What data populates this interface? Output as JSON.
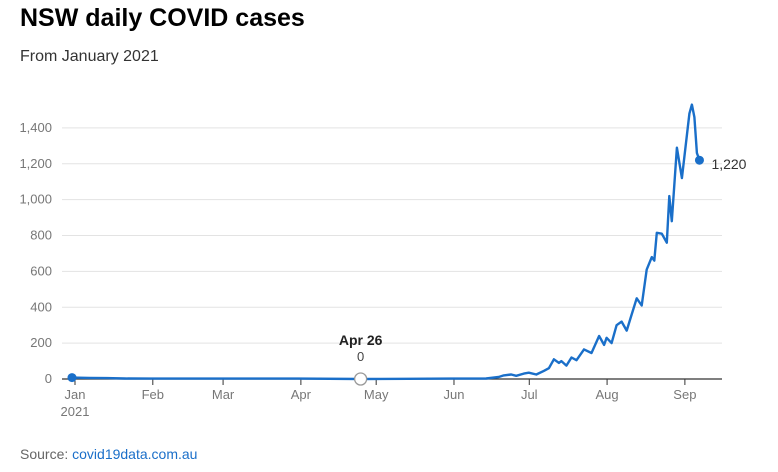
{
  "title": "NSW daily COVID cases",
  "subtitle": "From January 2021",
  "source": {
    "prefix": "Source: ",
    "link": "covid19data.com.au"
  },
  "colors": {
    "line": "#1a6fc9",
    "marker": "#999999"
  },
  "chart_data": {
    "type": "line",
    "title": "NSW daily COVID cases",
    "subtitle": "From January 2021",
    "xlabel": "",
    "ylabel": "",
    "ylim": [
      0,
      1500
    ],
    "yticks": [
      0,
      200,
      400,
      600,
      800,
      1000,
      1200,
      1400
    ],
    "ytick_labels": [
      "0",
      "200",
      "400",
      "600",
      "800",
      "1,000",
      "1,200",
      "1,400"
    ],
    "xticks": [
      {
        "date": "2021-01-01",
        "label": "Jan",
        "sublabel": "2021"
      },
      {
        "date": "2021-02-01",
        "label": "Feb"
      },
      {
        "date": "2021-03-01",
        "label": "Mar"
      },
      {
        "date": "2021-04-01",
        "label": "Apr"
      },
      {
        "date": "2021-05-01",
        "label": "May"
      },
      {
        "date": "2021-06-01",
        "label": "Jun"
      },
      {
        "date": "2021-07-01",
        "label": "Jul"
      },
      {
        "date": "2021-08-01",
        "label": "Aug"
      },
      {
        "date": "2021-09-01",
        "label": "Sep"
      }
    ],
    "annotations": [
      {
        "date": "2021-04-26",
        "label": "Apr 26",
        "value": 0,
        "value_label": "0"
      },
      {
        "date": "2021-09-08",
        "label": "1,220",
        "value": 1220,
        "value_label": "1,220"
      }
    ],
    "grid": true,
    "series": [
      {
        "x": [
          "2021-01-01",
          "2021-01-08",
          "2021-01-15",
          "2021-01-22",
          "2021-02-01",
          "2021-03-01",
          "2021-04-01",
          "2021-04-26",
          "2021-05-15",
          "2021-06-01",
          "2021-06-15",
          "2021-06-20",
          "2021-06-22",
          "2021-06-25",
          "2021-06-27",
          "2021-06-30",
          "2021-07-02",
          "2021-07-05",
          "2021-07-08",
          "2021-07-10",
          "2021-07-12",
          "2021-07-14",
          "2021-07-15",
          "2021-07-17",
          "2021-07-19",
          "2021-07-21",
          "2021-07-24",
          "2021-07-27",
          "2021-07-30",
          "2021-08-01",
          "2021-08-02",
          "2021-08-04",
          "2021-08-06",
          "2021-08-08",
          "2021-08-10",
          "2021-08-12",
          "2021-08-14",
          "2021-08-16",
          "2021-08-18",
          "2021-08-20",
          "2021-08-21",
          "2021-08-22",
          "2021-08-24",
          "2021-08-26",
          "2021-08-27",
          "2021-08-28",
          "2021-08-30",
          "2021-09-01",
          "2021-09-02",
          "2021-09-04",
          "2021-09-05",
          "2021-09-06",
          "2021-09-07",
          "2021-09-08"
        ],
        "values": [
          8,
          6,
          5,
          3,
          2,
          2,
          2,
          0,
          1,
          2,
          3,
          11,
          20,
          25,
          18,
          30,
          35,
          25,
          45,
          60,
          110,
          90,
          100,
          75,
          120,
          105,
          165,
          145,
          240,
          190,
          230,
          200,
          300,
          320,
          270,
          360,
          450,
          410,
          610,
          680,
          660,
          815,
          810,
          760,
          1020,
          880,
          1290,
          1120,
          1240,
          1480,
          1530,
          1460,
          1260,
          1220
        ]
      }
    ]
  }
}
